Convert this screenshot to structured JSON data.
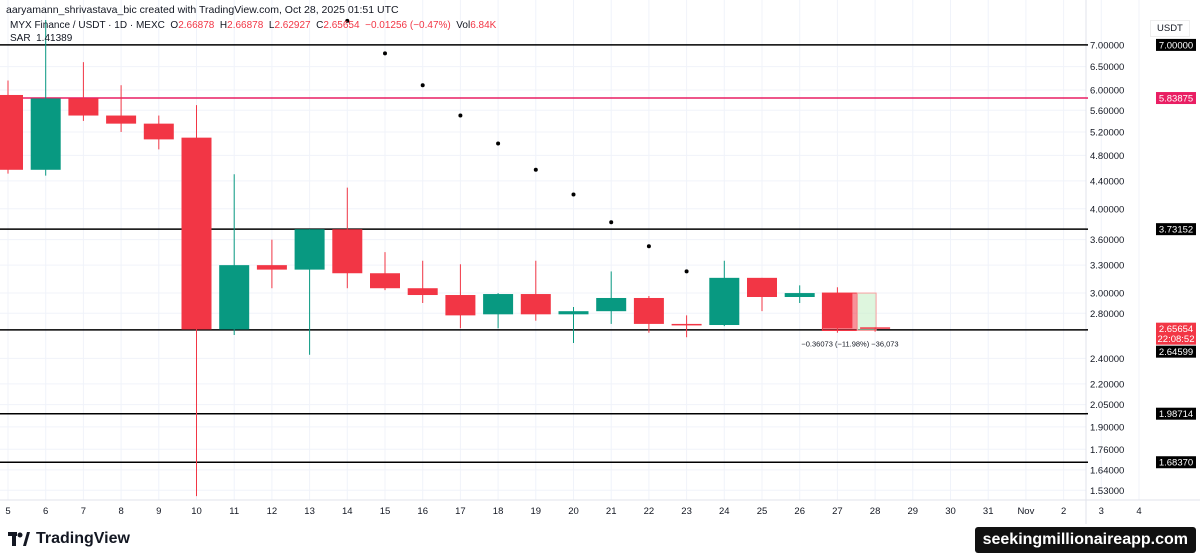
{
  "header": {
    "credit": "aaryamann_shrivastava_bic created with TradingView.com, Oct 28, 2025 01:51 UTC"
  },
  "legend": {
    "symbol": "MYX Finance / USDT · 1D · MEXC",
    "o_label": "O",
    "o": "2.66878",
    "h_label": "H",
    "h": "2.66878",
    "l_label": "L",
    "l": "2.62927",
    "c_label": "C",
    "c": "2.65654",
    "change": "−0.01256 (−0.47%)",
    "vol_label": "Vol",
    "vol": "6.84K",
    "sar_label": "SAR",
    "sar": "1.41389"
  },
  "axis": {
    "unit": "USDT"
  },
  "footer": {
    "brand": "TradingView",
    "watermark": "seekingmillionaireapp.com"
  },
  "colors": {
    "up": "#089981",
    "down": "#f23645",
    "pink": "#e91e63",
    "line": "#000000"
  },
  "chart_data": {
    "type": "candlestick",
    "yscale": "log",
    "ylim": [
      1.48,
      8.16
    ],
    "yticks": [
      "7.00000",
      "6.50000",
      "6.00000",
      "5.60000",
      "5.20000",
      "4.80000",
      "4.40000",
      "4.00000",
      "3.60000",
      "3.30000",
      "3.00000",
      "2.80000",
      "2.40000",
      "2.20000",
      "2.05000",
      "1.90000",
      "1.76000",
      "1.64000",
      "1.53000"
    ],
    "xticks": [
      "5",
      "6",
      "7",
      "8",
      "9",
      "10",
      "11",
      "12",
      "13",
      "14",
      "15",
      "16",
      "17",
      "18",
      "19",
      "20",
      "21",
      "22",
      "23",
      "24",
      "25",
      "26",
      "27",
      "28",
      "29",
      "30",
      "31",
      "Nov",
      "2",
      "3",
      "4"
    ],
    "candles": [
      {
        "d": "5",
        "o": 5.9,
        "h": 6.2,
        "l": 4.51,
        "c": 4.57
      },
      {
        "d": "6",
        "o": 4.57,
        "h": 7.62,
        "l": 4.48,
        "c": 5.83
      },
      {
        "d": "7",
        "o": 5.83,
        "h": 6.6,
        "l": 5.4,
        "c": 5.5
      },
      {
        "d": "8",
        "o": 5.5,
        "h": 6.1,
        "l": 5.2,
        "c": 5.35
      },
      {
        "d": "9",
        "o": 5.35,
        "h": 5.5,
        "l": 4.9,
        "c": 5.07
      },
      {
        "d": "10",
        "o": 5.1,
        "h": 5.7,
        "l": 1.5,
        "c": 2.65
      },
      {
        "d": "11",
        "o": 2.65,
        "h": 4.5,
        "l": 2.6,
        "c": 3.3
      },
      {
        "d": "12",
        "o": 3.3,
        "h": 3.6,
        "l": 3.05,
        "c": 3.25
      },
      {
        "d": "13",
        "o": 3.25,
        "h": 3.73,
        "l": 2.43,
        "c": 3.73
      },
      {
        "d": "14",
        "o": 3.73,
        "h": 4.3,
        "l": 3.05,
        "c": 3.21
      },
      {
        "d": "15",
        "o": 3.21,
        "h": 3.45,
        "l": 3.03,
        "c": 3.05
      },
      {
        "d": "16",
        "o": 3.05,
        "h": 3.35,
        "l": 2.9,
        "c": 2.98
      },
      {
        "d": "17",
        "o": 2.98,
        "h": 3.31,
        "l": 2.66,
        "c": 2.78
      },
      {
        "d": "18",
        "o": 2.79,
        "h": 3.0,
        "l": 2.66,
        "c": 2.99
      },
      {
        "d": "19",
        "o": 2.99,
        "h": 3.35,
        "l": 2.73,
        "c": 2.79
      },
      {
        "d": "20",
        "o": 2.79,
        "h": 2.86,
        "l": 2.53,
        "c": 2.82
      },
      {
        "d": "21",
        "o": 2.82,
        "h": 3.23,
        "l": 2.7,
        "c": 2.95
      },
      {
        "d": "22",
        "o": 2.95,
        "h": 2.97,
        "l": 2.62,
        "c": 2.7
      },
      {
        "d": "23",
        "o": 2.7,
        "h": 2.78,
        "l": 2.58,
        "c": 2.69
      },
      {
        "d": "24",
        "o": 2.69,
        "h": 3.35,
        "l": 2.68,
        "c": 3.16
      },
      {
        "d": "25",
        "o": 3.16,
        "h": 3.16,
        "l": 2.82,
        "c": 2.96
      },
      {
        "d": "26",
        "o": 2.96,
        "h": 3.08,
        "l": 2.9,
        "c": 3.0
      },
      {
        "d": "27",
        "o": 3.0,
        "h": 3.06,
        "l": 2.62,
        "c": 2.66
      },
      {
        "d": "28",
        "o": 2.66878,
        "h": 2.66878,
        "l": 2.62927,
        "c": 2.65654
      }
    ],
    "sar": [
      {
        "d": "14",
        "v": 7.6
      },
      {
        "d": "15",
        "v": 6.8
      },
      {
        "d": "16",
        "v": 6.1
      },
      {
        "d": "17",
        "v": 5.5
      },
      {
        "d": "18",
        "v": 5.0
      },
      {
        "d": "19",
        "v": 4.57
      },
      {
        "d": "20",
        "v": 4.2
      },
      {
        "d": "21",
        "v": 3.82
      },
      {
        "d": "22",
        "v": 3.52
      },
      {
        "d": "23",
        "v": 3.23
      }
    ],
    "hlines": [
      {
        "v": 7.0,
        "label": "7.00000",
        "color": "#000000"
      },
      {
        "v": 5.83875,
        "label": "5.83875",
        "color": "#e91e63"
      },
      {
        "v": 3.73152,
        "label": "3.73152",
        "color": "#000000"
      },
      {
        "v": 2.64599,
        "label": "2.64599",
        "color": "#000000"
      },
      {
        "v": 1.98714,
        "label": "1.98714",
        "color": "#000000"
      },
      {
        "v": 1.6837,
        "label": "1.68370",
        "color": "#000000"
      }
    ],
    "last_price": {
      "v": 2.65654,
      "label": "2.65654",
      "countdown": "22:08:52"
    },
    "position_tool": {
      "start": "27",
      "end": "28",
      "entry": 3.0,
      "target": 2.64,
      "label": "−0.36073 (−11.98%) −36,073"
    }
  }
}
